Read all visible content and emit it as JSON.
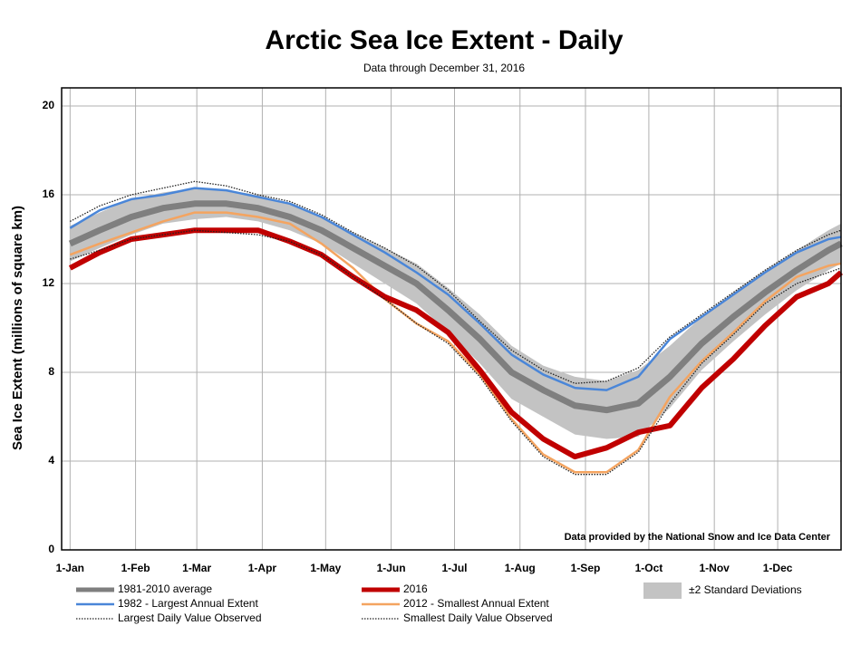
{
  "chart_data": {
    "type": "line",
    "title": "Arctic Sea Ice Extent - Daily",
    "subtitle": "Data through December 31, 2016",
    "y_label": "Sea Ice Extent (millions of square km)",
    "annotation": "Data provided by the National Snow and Ice Data Center",
    "x": [
      1,
      15,
      30,
      45,
      60,
      75,
      90,
      105,
      120,
      135,
      150,
      165,
      180,
      195,
      210,
      225,
      240,
      255,
      270,
      285,
      300,
      315,
      330,
      345,
      360,
      366
    ],
    "xlim": [
      -3,
      366
    ],
    "xticks": [
      {
        "value": 1,
        "label": "1-Jan"
      },
      {
        "value": 32,
        "label": "1-Feb"
      },
      {
        "value": 61,
        "label": "1-Mar"
      },
      {
        "value": 92,
        "label": "1-Apr"
      },
      {
        "value": 122,
        "label": "1-May"
      },
      {
        "value": 153,
        "label": "1-Jun"
      },
      {
        "value": 183,
        "label": "1-Jul"
      },
      {
        "value": 214,
        "label": "1-Aug"
      },
      {
        "value": 245,
        "label": "1-Sep"
      },
      {
        "value": 275,
        "label": "1-Oct"
      },
      {
        "value": 306,
        "label": "1-Nov"
      },
      {
        "value": 336,
        "label": "1-Dec"
      }
    ],
    "ylim": [
      0,
      20
    ],
    "yticks": [
      0,
      4,
      8,
      12,
      16,
      20
    ],
    "grid": true,
    "band": {
      "name": "±2 Standard Deviations",
      "color": "#c3c3c3",
      "upper": [
        14.6,
        15.2,
        15.8,
        16.1,
        16.3,
        16.2,
        16.0,
        15.6,
        15.0,
        14.3,
        13.6,
        12.9,
        11.8,
        10.6,
        9.2,
        8.3,
        7.8,
        7.6,
        8.1,
        9.2,
        10.5,
        11.6,
        12.6,
        13.5,
        14.4,
        14.7
      ],
      "lower": [
        13.0,
        13.6,
        14.2,
        14.7,
        14.9,
        15.0,
        14.8,
        14.4,
        13.8,
        12.9,
        12.0,
        11.1,
        9.8,
        8.4,
        6.8,
        6.0,
        5.2,
        5.0,
        5.1,
        6.4,
        8.1,
        9.4,
        10.6,
        11.7,
        12.6,
        12.9
      ]
    },
    "series": [
      {
        "name": "1981-2010 average",
        "color": "#7f7f7f",
        "width": 7,
        "dash": "solid",
        "values": [
          13.8,
          14.4,
          15.0,
          15.4,
          15.6,
          15.6,
          15.4,
          15.0,
          14.4,
          13.6,
          12.8,
          12.0,
          10.8,
          9.5,
          8.0,
          7.2,
          6.5,
          6.3,
          6.6,
          7.8,
          9.3,
          10.5,
          11.6,
          12.6,
          13.5,
          13.8
        ]
      },
      {
        "name": "2016",
        "color": "#c00000",
        "width": 6,
        "dash": "solid",
        "values": [
          12.7,
          13.4,
          14.0,
          14.2,
          14.4,
          14.4,
          14.4,
          13.9,
          13.3,
          12.3,
          11.4,
          10.8,
          9.8,
          8.1,
          6.2,
          5.0,
          4.2,
          4.6,
          5.3,
          5.6,
          7.3,
          8.6,
          10.1,
          11.4,
          12.0,
          12.5
        ]
      },
      {
        "name": "1982 - Largest Annual Extent",
        "color": "#4a86d8",
        "width": 2.5,
        "dash": "solid",
        "values": [
          14.5,
          15.3,
          15.8,
          16.0,
          16.3,
          16.2,
          15.9,
          15.6,
          15.0,
          14.2,
          13.4,
          12.5,
          11.5,
          10.2,
          8.8,
          7.9,
          7.3,
          7.2,
          7.8,
          9.5,
          10.5,
          11.5,
          12.5,
          13.4,
          14.0,
          14.1
        ]
      },
      {
        "name": "2012 - Smallest Annual Extent",
        "color": "#f4a460",
        "width": 2.5,
        "dash": "solid",
        "values": [
          13.3,
          13.8,
          14.3,
          14.8,
          15.2,
          15.2,
          15.0,
          14.7,
          13.8,
          12.7,
          11.3,
          10.2,
          9.4,
          7.9,
          5.9,
          4.3,
          3.5,
          3.5,
          4.5,
          6.9,
          8.5,
          9.8,
          11.2,
          12.3,
          12.8,
          12.9
        ]
      },
      {
        "name": "Largest Daily Value Observed",
        "color": "#222222",
        "width": 1.3,
        "dash": "dotted",
        "values": [
          14.8,
          15.5,
          16.0,
          16.3,
          16.6,
          16.4,
          16.0,
          15.7,
          15.1,
          14.3,
          13.6,
          12.8,
          11.7,
          10.3,
          9.0,
          8.1,
          7.5,
          7.6,
          8.2,
          9.6,
          10.6,
          11.6,
          12.6,
          13.5,
          14.2,
          14.4
        ]
      },
      {
        "name": "Smallest Daily Value Observed",
        "color": "#222222",
        "width": 1.3,
        "dash": "dotted",
        "values": [
          13.1,
          13.5,
          14.0,
          14.2,
          14.4,
          14.3,
          14.2,
          13.9,
          13.3,
          12.3,
          11.3,
          10.2,
          9.3,
          7.8,
          5.8,
          4.2,
          3.4,
          3.4,
          4.4,
          6.6,
          8.4,
          9.7,
          11.1,
          12.0,
          12.5,
          12.7
        ]
      }
    ]
  }
}
